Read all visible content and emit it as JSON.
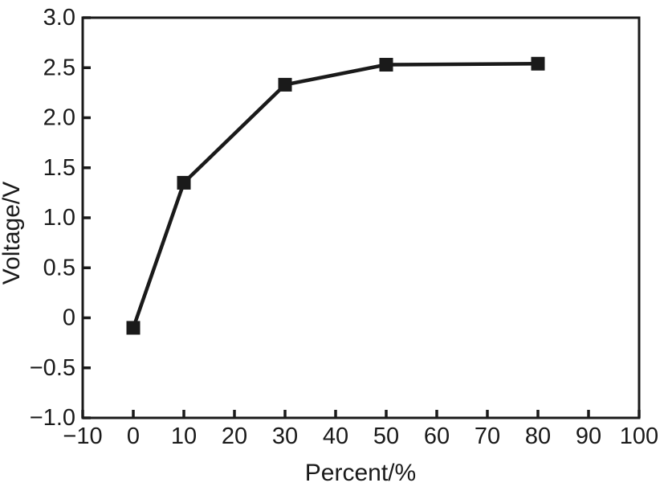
{
  "chart_data": {
    "type": "line",
    "title": "",
    "xlabel": "Percent/%",
    "ylabel": "Voltage/V",
    "x": [
      0,
      10,
      30,
      50,
      80
    ],
    "y": [
      -0.1,
      1.35,
      2.33,
      2.53,
      2.54
    ],
    "xlim": [
      -10,
      100
    ],
    "ylim": [
      -1.0,
      3.0
    ],
    "x_ticks": [
      -10,
      0,
      10,
      20,
      30,
      40,
      50,
      60,
      70,
      80,
      90,
      100
    ],
    "x_tick_labels": [
      "−10",
      "0",
      "10",
      "20",
      "30",
      "40",
      "50",
      "60",
      "70",
      "80",
      "90",
      "100"
    ],
    "y_ticks": [
      -1.0,
      -0.5,
      0,
      0.5,
      1.0,
      1.5,
      2.0,
      2.5,
      3.0
    ],
    "y_tick_labels": [
      "−1.0",
      "−0.5",
      "0",
      "0.5",
      "1.0",
      "1.5",
      "2.0",
      "2.5",
      "3.0"
    ],
    "grid": false,
    "legend": null,
    "marker": "square",
    "marker_size_px": 17,
    "line_color": "#1a1a1a",
    "marker_color": "#1a1a1a",
    "axis_color": "#1a1a1a",
    "background": "#ffffff"
  }
}
